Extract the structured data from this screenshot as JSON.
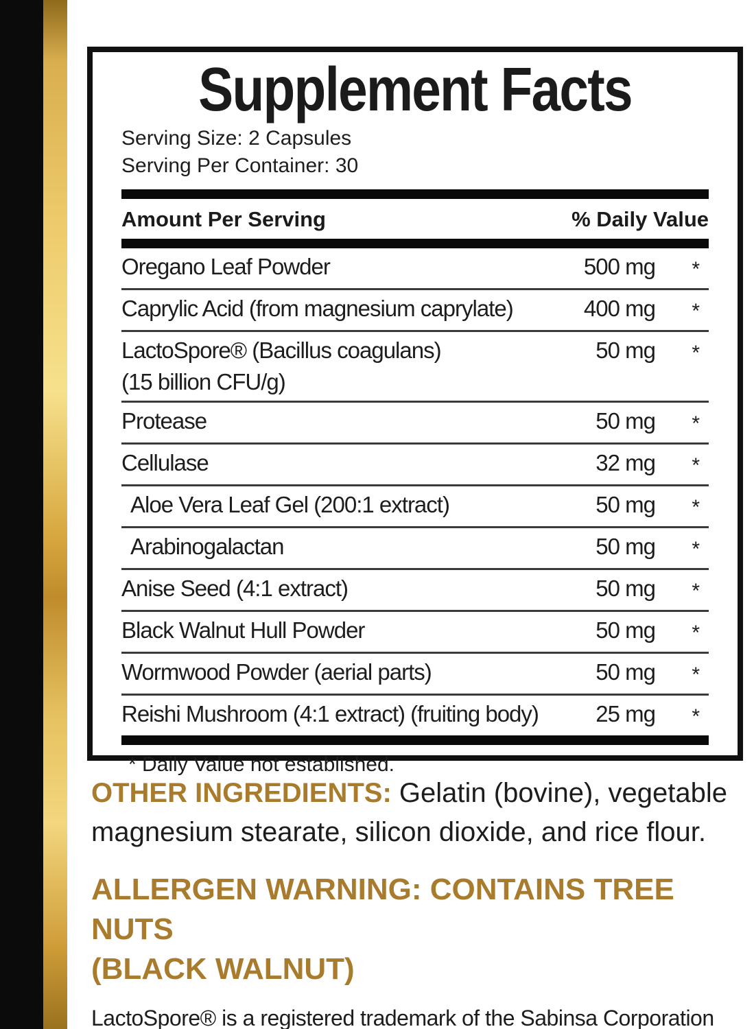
{
  "colors": {
    "gold_accent_text": "#a87b2d",
    "gold_stripe_light": "#f6e18c",
    "gold_stripe_dark": "#8f6a1d",
    "side_bar_black": "#0b0b0b",
    "ink": "#1d1d1d"
  },
  "panel": {
    "title": "Supplement Facts",
    "serving_size": "Serving Size: 2 Capsules",
    "servings_per_container": "Serving Per Container: 30",
    "columns": {
      "amount": "Amount Per Serving",
      "dv": "% Daily Value"
    },
    "rows": [
      {
        "name": "Oregano Leaf Powder",
        "amount": "500 mg",
        "dv": "*"
      },
      {
        "name": "Caprylic Acid (from magnesium caprylate)",
        "amount": "400 mg",
        "dv": "*"
      },
      {
        "name": "LactoSpore® (Bacillus coagulans)",
        "name_line2": "(15 billion CFU/g)",
        "amount": "50 mg",
        "dv": "*"
      },
      {
        "name": "Protease",
        "amount": "50 mg",
        "dv": "*"
      },
      {
        "name": "Cellulase",
        "amount": "32 mg",
        "dv": "*"
      },
      {
        "name": "Aloe Vera Leaf Gel (200:1 extract)",
        "amount": "50 mg",
        "dv": "*"
      },
      {
        "name": "Arabinogalactan",
        "amount": "50 mg",
        "dv": "*"
      },
      {
        "name": "Anise Seed (4:1 extract)",
        "amount": "50 mg",
        "dv": "*"
      },
      {
        "name": "Black Walnut Hull Powder",
        "amount": "50 mg",
        "dv": "*"
      },
      {
        "name": "Wormwood Powder (aerial parts)",
        "amount": "50 mg",
        "dv": "*"
      },
      {
        "name": "Reishi Mushroom (4:1 extract) (fruiting body)",
        "amount": "25 mg",
        "dv": "*"
      }
    ],
    "footnote": "* Daily Value not established."
  },
  "other_ingredients": {
    "label": "OTHER INGREDIENTS:",
    "text": "Gelatin (bovine), vegetable magnesium stearate, silicon dioxide, and rice flour."
  },
  "allergen": {
    "line1": "ALLERGEN WARNING: CONTAINS TREE NUTS",
    "line2": "(BLACK WALNUT)"
  },
  "trademark": "LactoSpore® is a registered trademark of the Sabinsa Corporation"
}
